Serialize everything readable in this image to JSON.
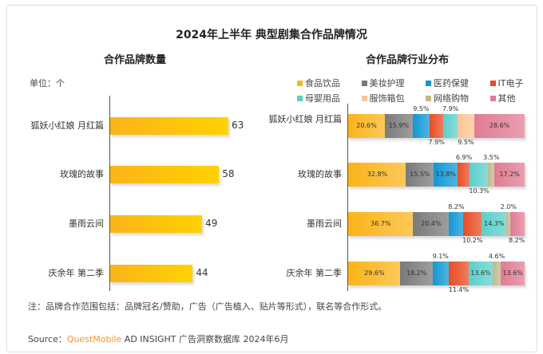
{
  "title": "2024年上半年 典型剧集合作品牌情况",
  "left": {
    "subtitle": "合作品牌数量",
    "unit": "单位：个"
  },
  "right": {
    "subtitle": "合作品牌行业分布"
  },
  "watermark": "QUEST MOBILE",
  "note": "注：品牌合作范围包括：品牌冠名/赞助，广告（广告植入、贴片等形式），联名等合作形式。",
  "source": {
    "prefix": "Source：",
    "brand": "QuestMobile",
    "rest": " AD INSIGHT 广告洞察数据库 2024年6月"
  },
  "chart_data": [
    {
      "type": "bar",
      "orientation": "horizontal",
      "title": "合作品牌数量",
      "ylabel": "单位：个",
      "categories": [
        "狐妖小红娘 月红篇",
        "玫瑰的故事",
        "墨雨云间",
        "庆余年 第二季"
      ],
      "values": [
        63,
        58,
        49,
        44
      ],
      "xlim": [
        0,
        63
      ]
    },
    {
      "type": "bar",
      "stacked": true,
      "orientation": "horizontal",
      "title": "合作品牌行业分布",
      "legend": "top",
      "categories": [
        "狐妖小红娘 月红篇",
        "玫瑰的故事",
        "墨雨云间",
        "庆余年 第二季"
      ],
      "series": [
        {
          "name": "食品饮品",
          "color": "#fbb41a",
          "values": [
            20.6,
            32.8,
            36.7,
            29.6
          ]
        },
        {
          "name": "美妆护理",
          "color": "#7a7a7a",
          "values": [
            15.9,
            15.5,
            20.4,
            18.2
          ]
        },
        {
          "name": "医药保健",
          "color": "#1197d4",
          "values": [
            9.5,
            13.8,
            8.2,
            9.1
          ]
        },
        {
          "name": "IT电子",
          "color": "#e84d24",
          "values": [
            7.9,
            6.9,
            10.2,
            11.4
          ]
        },
        {
          "name": "母婴用品",
          "color": "#5ccfcb",
          "values": [
            7.9,
            10.3,
            14.3,
            13.6
          ]
        },
        {
          "name": "服饰箱包",
          "color": "#fbc596",
          "values": [
            9.5,
            0,
            0,
            0
          ]
        },
        {
          "name": "网络购物",
          "color": "#c2b98a",
          "values": [
            0,
            3.5,
            2.0,
            4.6
          ]
        },
        {
          "name": "其他",
          "color": "#e07c93",
          "values": [
            28.6,
            17.2,
            8.2,
            13.6
          ]
        }
      ],
      "labels": [
        [
          "20.6%",
          "15.9%",
          "9.5%",
          "7.9%",
          "7.9%",
          "9.5%",
          "",
          "28.6%"
        ],
        [
          "32.8%",
          "15.5%",
          "13.8%",
          "6.9%",
          "10.3%",
          "",
          "3.5%",
          "17.2%"
        ],
        [
          "36.7%",
          "20.4%",
          "8.2%",
          "10.2%",
          "14.3%",
          "",
          "2.0%",
          "8.2%"
        ],
        [
          "29.6%",
          "18.2%",
          "9.1%",
          "11.4%",
          "13.6%",
          "",
          "4.6%",
          "13.6%"
        ]
      ]
    }
  ]
}
